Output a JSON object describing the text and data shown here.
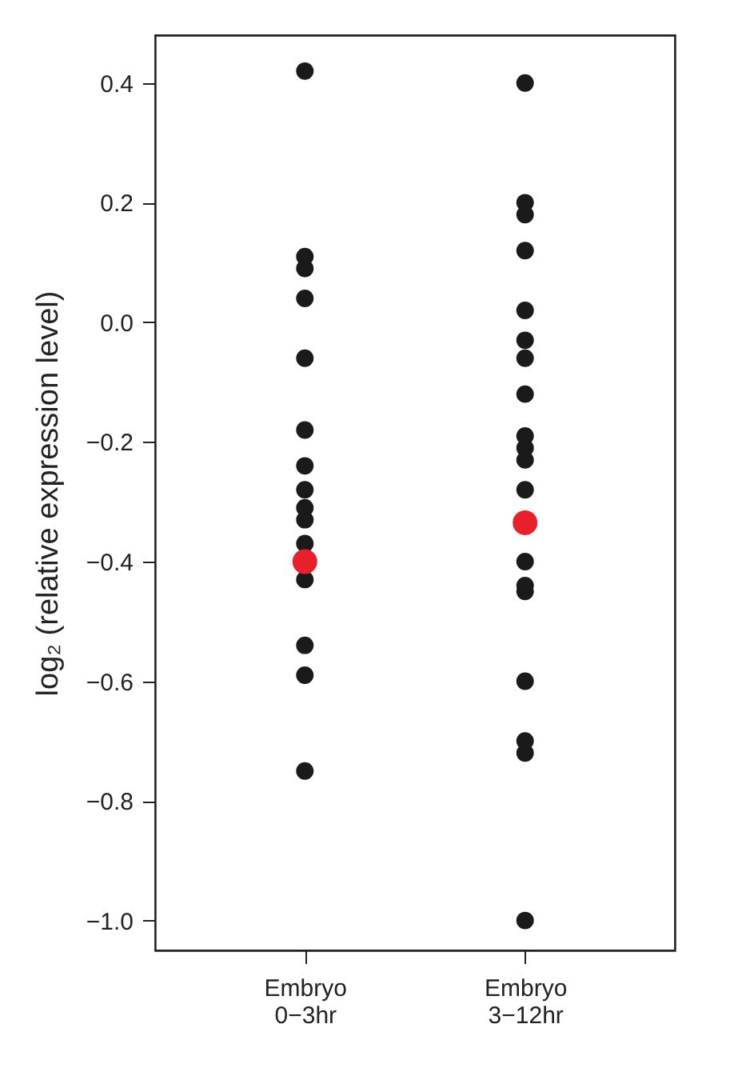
{
  "chart_data": {
    "type": "scatter",
    "ylabel": "log₂ (relative expression level)",
    "categories": [
      "Embryo\n0−3hr",
      "Embryo\n3−12hr"
    ],
    "series": [
      {
        "color": "#1a1a1a",
        "x": [
          "Embryo\n0−3hr",
          "Embryo\n0−3hr",
          "Embryo\n0−3hr",
          "Embryo\n0−3hr",
          "Embryo\n0−3hr",
          "Embryo\n0−3hr",
          "Embryo\n0−3hr",
          "Embryo\n0−3hr",
          "Embryo\n0−3hr",
          "Embryo\n0−3hr",
          "Embryo\n0−3hr",
          "Embryo\n0−3hr",
          "Embryo\n0−3hr",
          "Embryo\n0−3hr",
          "Embryo\n0−3hr",
          "Embryo\n3−12hr",
          "Embryo\n3−12hr",
          "Embryo\n3−12hr",
          "Embryo\n3−12hr",
          "Embryo\n3−12hr",
          "Embryo\n3−12hr",
          "Embryo\n3−12hr",
          "Embryo\n3−12hr",
          "Embryo\n3−12hr",
          "Embryo\n3−12hr",
          "Embryo\n3−12hr",
          "Embryo\n3−12hr",
          "Embryo\n3−12hr",
          "Embryo\n3−12hr",
          "Embryo\n3−12hr",
          "Embryo\n3−12hr",
          "Embryo\n3−12hr",
          "Embryo\n3−12hr",
          "Embryo\n3−12hr"
        ],
        "values": [
          0.42,
          0.11,
          0.09,
          0.04,
          -0.06,
          -0.18,
          -0.24,
          -0.28,
          -0.31,
          -0.33,
          -0.37,
          -0.43,
          -0.54,
          -0.59,
          -0.75,
          0.4,
          0.2,
          0.18,
          0.12,
          0.02,
          -0.03,
          -0.06,
          -0.12,
          -0.19,
          -0.21,
          -0.23,
          -0.28,
          -0.4,
          -0.44,
          -0.45,
          -0.6,
          -0.7,
          -0.72,
          -1.0
        ]
      },
      {
        "color": "#e8202a",
        "x": [
          "Embryo\n0−3hr",
          "Embryo\n3−12hr"
        ],
        "values": [
          -0.4,
          -0.335
        ]
      }
    ],
    "ylim": [
      -1.05,
      0.48
    ],
    "yticks": [
      {
        "value": 0.4,
        "label": "0.4"
      },
      {
        "value": 0.2,
        "label": "0.2"
      },
      {
        "value": 0,
        "label": "0.0"
      },
      {
        "value": -0.2,
        "label": "−0.2"
      },
      {
        "value": -0.4,
        "label": "−0.4"
      },
      {
        "value": -0.6,
        "label": "−0.6"
      },
      {
        "value": -0.8,
        "label": "−0.8"
      },
      {
        "value": -1.0,
        "label": "−1.0"
      }
    ],
    "grid": false,
    "legend": false,
    "marker": "circle"
  }
}
